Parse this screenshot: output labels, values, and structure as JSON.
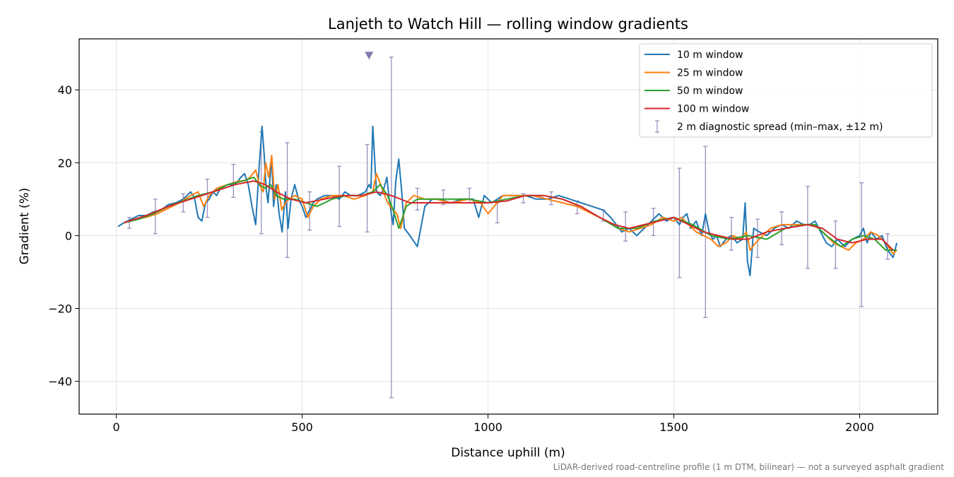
{
  "chart_data": {
    "type": "line",
    "title": "Lanjeth to Watch Hill — rolling window gradients",
    "xlabel": "Distance uphill (m)",
    "ylabel": "Gradient (%)",
    "xlim": [
      -100,
      2210
    ],
    "ylim": [
      -49,
      54
    ],
    "xticks": [
      0,
      500,
      1000,
      1500,
      2000
    ],
    "yticks": [
      -40,
      -20,
      0,
      20,
      40
    ],
    "xtick_labels": [
      "0",
      "500",
      "1000",
      "1500",
      "2000"
    ],
    "ytick_labels": [
      "−40",
      "−20",
      "0",
      "20",
      "40"
    ],
    "grid": true,
    "legend_position": "top-right",
    "footnote": "LiDAR-derived road-centreline profile (1 m DTM, bilinear) — not a surveyed asphalt gradient",
    "series": [
      {
        "name": "10 m window",
        "color": "#1f77b4",
        "x": [
          5,
          20,
          40,
          60,
          80,
          100,
          120,
          140,
          160,
          180,
          200,
          210,
          220,
          230,
          240,
          250,
          260,
          270,
          280,
          300,
          320,
          335,
          345,
          355,
          365,
          375,
          385,
          392,
          398,
          403,
          408,
          413,
          418,
          423,
          430,
          438,
          446,
          455,
          462,
          470,
          480,
          490,
          500,
          510,
          520,
          530,
          540,
          560,
          580,
          600,
          615,
          630,
          650,
          670,
          680,
          685,
          690,
          700,
          710,
          720,
          728,
          734,
          740,
          745,
          752,
          760,
          768,
          775,
          790,
          810,
          830,
          850,
          870,
          900,
          930,
          960,
          975,
          990,
          1010,
          1040,
          1070,
          1100,
          1130,
          1160,
          1190,
          1220,
          1250,
          1280,
          1310,
          1330,
          1345,
          1360,
          1380,
          1400,
          1420,
          1440,
          1460,
          1480,
          1500,
          1515,
          1525,
          1535,
          1545,
          1560,
          1575,
          1585,
          1595,
          1605,
          1615,
          1625,
          1640,
          1655,
          1670,
          1685,
          1692,
          1698,
          1705,
          1715,
          1730,
          1750,
          1770,
          1790,
          1810,
          1830,
          1850,
          1865,
          1880,
          1895,
          1910,
          1925,
          1940,
          1960,
          1980,
          2000,
          2010,
          2020,
          2030,
          2045,
          2060,
          2075,
          2090,
          2100
        ],
        "values": [
          2.5,
          3.5,
          4.5,
          5.5,
          5.5,
          6.5,
          7,
          8.5,
          9,
          10,
          12,
          10.5,
          5,
          4,
          9,
          10,
          12,
          11,
          13,
          14,
          14,
          16,
          17,
          14,
          8,
          3,
          20,
          30,
          22,
          13,
          9,
          15,
          22,
          8,
          14,
          6,
          1,
          12,
          2,
          10,
          14,
          10,
          8,
          5,
          7,
          9,
          10,
          11,
          11,
          10,
          12,
          11,
          11,
          12,
          14,
          13,
          30,
          12,
          11,
          13,
          16,
          10,
          6,
          3,
          15,
          21,
          12,
          2,
          0,
          -3,
          8,
          10,
          10,
          9,
          10,
          10,
          5,
          11,
          9,
          11,
          11,
          11,
          10,
          10,
          11,
          10,
          9,
          8,
          7,
          5,
          3,
          1,
          2,
          0,
          2,
          4,
          6,
          4,
          5,
          3,
          5,
          6,
          2,
          4,
          0,
          6,
          1,
          -1,
          0,
          -3,
          -1,
          0,
          -2,
          -1,
          9,
          -7,
          -11,
          2,
          1,
          0,
          2,
          3,
          2,
          4,
          3,
          3,
          4,
          1,
          -2,
          -3,
          -1,
          -3,
          -1,
          0,
          2,
          -2,
          1,
          -1,
          0,
          -4,
          -6,
          -2
        ]
      },
      {
        "name": "25 m window",
        "color": "#ff7f0e",
        "x": [
          20,
          50,
          80,
          110,
          140,
          170,
          200,
          220,
          235,
          250,
          270,
          300,
          330,
          345,
          360,
          375,
          385,
          395,
          402,
          410,
          418,
          426,
          435,
          445,
          455,
          465,
          480,
          500,
          515,
          530,
          550,
          580,
          610,
          640,
          670,
          690,
          700,
          715,
          730,
          745,
          755,
          765,
          780,
          800,
          830,
          860,
          900,
          950,
          980,
          1000,
          1040,
          1080,
          1120,
          1160,
          1200,
          1240,
          1280,
          1320,
          1350,
          1380,
          1410,
          1440,
          1470,
          1500,
          1520,
          1540,
          1560,
          1580,
          1600,
          1620,
          1640,
          1660,
          1680,
          1695,
          1705,
          1720,
          1740,
          1760,
          1790,
          1820,
          1850,
          1870,
          1890,
          1910,
          1930,
          1950,
          1970,
          1990,
          2010,
          2030,
          2050,
          2070,
          2090,
          2100
        ],
        "values": [
          3.5,
          4.5,
          5,
          6,
          7.5,
          9,
          11,
          12,
          8,
          11,
          13,
          14,
          15,
          15,
          16,
          18,
          14,
          12,
          20,
          16,
          22,
          10,
          14,
          7,
          9,
          10,
          11,
          10,
          5,
          8,
          10,
          11,
          11,
          10,
          11,
          12,
          17,
          13,
          9,
          7,
          6,
          2,
          9,
          11,
          10,
          10,
          9,
          10,
          9,
          6,
          11,
          11,
          11,
          10,
          9,
          8,
          6,
          4,
          2,
          1,
          2,
          3,
          5,
          4,
          5,
          3,
          1,
          0,
          -1,
          -3,
          -2,
          0,
          -1,
          1,
          -4,
          -2,
          0,
          2,
          3,
          3,
          3,
          3,
          2,
          0,
          -2,
          -3,
          -4,
          -2,
          -1,
          1,
          0,
          -2,
          -5,
          -4
        ]
      },
      {
        "name": "50 m window",
        "color": "#2ca02c",
        "x": [
          20,
          60,
          100,
          140,
          180,
          220,
          260,
          300,
          340,
          370,
          385,
          400,
          415,
          430,
          450,
          480,
          510,
          540,
          580,
          620,
          660,
          690,
          710,
          730,
          745,
          760,
          780,
          810,
          850,
          900,
          950,
          1000,
          1050,
          1100,
          1150,
          1200,
          1250,
          1300,
          1350,
          1400,
          1450,
          1500,
          1550,
          1600,
          1650,
          1700,
          1750,
          1800,
          1850,
          1880,
          1910,
          1950,
          1980,
          2010,
          2040,
          2070,
          2100
        ],
        "values": [
          3.5,
          4.5,
          6,
          8,
          9.5,
          11,
          12,
          14,
          15,
          16,
          14,
          13,
          14,
          11,
          10,
          10,
          9,
          8,
          10,
          11,
          11,
          12,
          14,
          11,
          7,
          2,
          8,
          10,
          10,
          10,
          10,
          9,
          10,
          11,
          11,
          10,
          8,
          5,
          2,
          2,
          4,
          5,
          3,
          0,
          -1,
          0,
          -1,
          2,
          3,
          3,
          0,
          -3,
          -1,
          0,
          -1,
          -4,
          -4
        ]
      },
      {
        "name": "100 m window",
        "color": "#d62728",
        "x": [
          20,
          80,
          140,
          200,
          260,
          320,
          370,
          400,
          430,
          470,
          510,
          560,
          610,
          660,
          700,
          740,
          790,
          850,
          900,
          950,
          1000,
          1050,
          1100,
          1150,
          1200,
          1250,
          1300,
          1340,
          1380,
          1420,
          1460,
          1500,
          1540,
          1580,
          1620,
          1660,
          1700,
          1750,
          1800,
          1860,
          1900,
          1940,
          1980,
          2020,
          2060,
          2090
        ],
        "values": [
          3.5,
          5.5,
          8,
          10,
          12,
          14,
          15,
          14,
          12,
          10,
          9,
          10,
          11,
          11,
          12,
          11,
          9,
          9,
          9,
          9,
          9,
          9.5,
          11,
          11,
          10,
          8,
          5,
          3,
          2,
          3,
          4,
          5,
          3,
          1,
          0,
          -1,
          -1,
          1,
          2,
          3,
          2,
          -1,
          -2,
          -1,
          -1,
          -4
        ]
      }
    ],
    "diagnostic": {
      "name": "2 m diagnostic spread (min–max, ±12 m)",
      "color": "#9a8fbd",
      "x": [
        35,
        105,
        180,
        245,
        315,
        390,
        460,
        520,
        600,
        675,
        740,
        810,
        880,
        950,
        1025,
        1095,
        1170,
        1240,
        1310,
        1370,
        1445,
        1515,
        1585,
        1655,
        1725,
        1790,
        1860,
        1935,
        2005,
        2075
      ],
      "min": [
        2,
        0.5,
        6.5,
        5,
        10.5,
        0.5,
        -6,
        1.5,
        2.5,
        1,
        -44.5,
        7,
        8.5,
        9,
        3.5,
        9,
        8.5,
        6,
        4,
        -1.5,
        0,
        -11.5,
        -22.5,
        -4,
        -6,
        -2.5,
        -9,
        -9,
        -19.5,
        -6.5
      ],
      "max": [
        5,
        10,
        11.5,
        15.5,
        19.5,
        28.5,
        25.5,
        12,
        19,
        25,
        49,
        13,
        12.5,
        13,
        9,
        11.5,
        12,
        9.5,
        7,
        6.5,
        7.5,
        18.5,
        24.5,
        5,
        4.5,
        6.5,
        13.5,
        4,
        14.5,
        0.5
      ],
      "clipped_marker": {
        "x": 680,
        "y": 49.5
      }
    }
  }
}
